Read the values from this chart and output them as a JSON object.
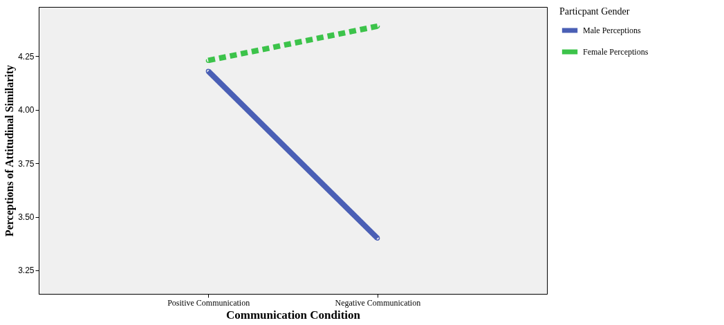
{
  "chart_data": {
    "type": "line",
    "xlabel": "Communication Condition",
    "ylabel": "Perceptions of Attitudinal Similarity",
    "legend_title": "Particpant Gender",
    "categories": [
      "Positive Communication",
      "Negative Communication"
    ],
    "series": [
      {
        "name": "Male Perceptions",
        "color": "#4a5fb5",
        "values": [
          4.18,
          3.4
        ],
        "line_style": "solid"
      },
      {
        "name": "Female Perceptions",
        "color": "#3cc34a",
        "values": [
          4.23,
          4.39
        ],
        "line_style": "dashed"
      }
    ],
    "ylim": [
      3.14,
      4.48
    ],
    "yticks": [
      {
        "value": 3.25,
        "label": "3.25"
      },
      {
        "value": 3.5,
        "label": "3.50"
      },
      {
        "value": 3.75,
        "label": "3.75"
      },
      {
        "value": 4.0,
        "label": "4.00"
      },
      {
        "value": 4.25,
        "label": "4.25"
      }
    ],
    "grid": false,
    "legend": "top right",
    "marker": "circle"
  }
}
